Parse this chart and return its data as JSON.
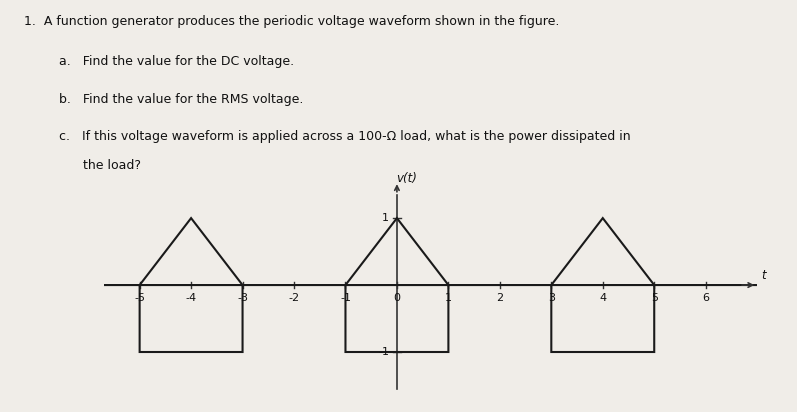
{
  "title_text": "1.  A function generator produces the periodic voltage waveform shown in the figure.",
  "sub_a": "a.   Find the value for the DC voltage.",
  "sub_b": "b.   Find the value for the RMS voltage.",
  "sub_c_line1": "c.   If this voltage waveform is applied across a 100-Ω load, what is the power dissipated in",
  "sub_c_line2": "      the load?",
  "ylabel": "v(t)",
  "xlabel": "t",
  "xlim": [
    -5.7,
    7.0
  ],
  "ylim": [
    -1.65,
    1.55
  ],
  "xticks": [
    -5,
    -4,
    -3,
    -2,
    -1,
    0,
    1,
    2,
    3,
    4,
    5,
    6
  ],
  "ytick_labels": [
    1,
    -1
  ],
  "axis_color": "#333333",
  "waveform_color": "#1a1a1a",
  "bg_color": "#f0ede8",
  "text_color": "#111111",
  "fontsize_text": 9.0,
  "fontsize_tick": 8.0
}
